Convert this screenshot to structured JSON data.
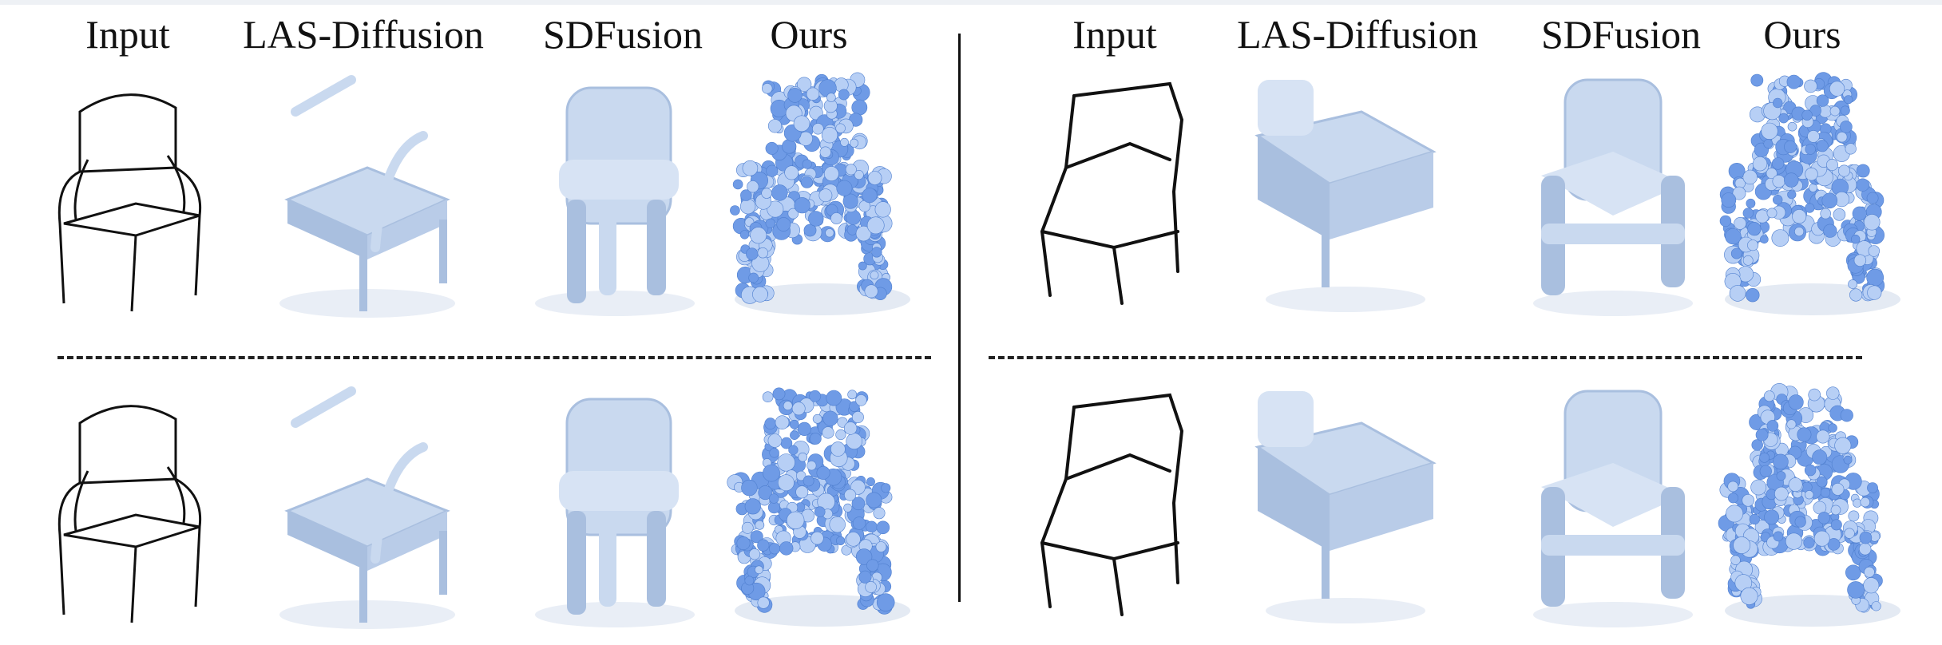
{
  "figure": {
    "columns_left": [
      "Input",
      "LAS-Diffusion",
      "SDFusion",
      "Ours"
    ],
    "columns_right": [
      "Input",
      "LAS-Diffusion",
      "SDFusion",
      "Ours"
    ],
    "rows": [
      {
        "panel": "left",
        "row": "top",
        "cells": [
          {
            "method": "Input",
            "style": "outline-sketch"
          },
          {
            "method": "LAS-Diffusion",
            "style": "mesh"
          },
          {
            "method": "SDFusion",
            "style": "mesh"
          },
          {
            "method": "Ours",
            "style": "spheres"
          }
        ]
      },
      {
        "panel": "right",
        "row": "top",
        "cells": [
          {
            "method": "Input",
            "style": "line-sketch"
          },
          {
            "method": "LAS-Diffusion",
            "style": "mesh"
          },
          {
            "method": "SDFusion",
            "style": "mesh"
          },
          {
            "method": "Ours",
            "style": "spheres"
          }
        ]
      },
      {
        "panel": "left",
        "row": "bottom",
        "cells": [
          {
            "method": "Input",
            "style": "outline-sketch"
          },
          {
            "method": "LAS-Diffusion",
            "style": "mesh"
          },
          {
            "method": "SDFusion",
            "style": "mesh"
          },
          {
            "method": "Ours",
            "style": "spheres"
          }
        ]
      },
      {
        "panel": "right",
        "row": "bottom",
        "cells": [
          {
            "method": "Input",
            "style": "line-sketch"
          },
          {
            "method": "LAS-Diffusion",
            "style": "mesh"
          },
          {
            "method": "SDFusion",
            "style": "mesh"
          },
          {
            "method": "Ours",
            "style": "spheres"
          }
        ]
      }
    ],
    "colors": {
      "mesh": "#c9d9ef",
      "mesh_shade": "#a9bfdf",
      "sphere": "#6f9be6",
      "sphere_light": "#b7cff5",
      "sketch": "#111111"
    }
  }
}
